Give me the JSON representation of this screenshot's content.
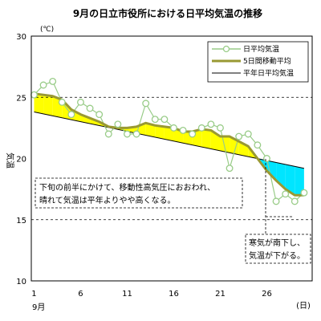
{
  "chart_data": {
    "type": "line",
    "title": "9月の日立市役所における日平均気温の推移",
    "y_unit": "(℃)",
    "ylabel": "気温",
    "x_month_label": "9月",
    "x_unit": "(日)",
    "ylim": [
      10,
      30
    ],
    "y_ticks": [
      10,
      15,
      20,
      25,
      30
    ],
    "xlim": [
      1,
      30
    ],
    "x_ticks": [
      1,
      6,
      11,
      16,
      21,
      26
    ],
    "grid_y_dashed": [
      15,
      25
    ],
    "legend_position": "top-right",
    "colors": {
      "daily": "#99cc88",
      "moving_avg": "#999933",
      "normal": "#000000",
      "warm_fill": "#ffff00",
      "cold_fill": "#00e5ff"
    },
    "series": [
      {
        "name": "日平均気温",
        "x": [
          1,
          2,
          3,
          4,
          5,
          6,
          7,
          8,
          9,
          10,
          11,
          12,
          13,
          14,
          15,
          16,
          17,
          18,
          19,
          20,
          21,
          22,
          23,
          24,
          25,
          26,
          27,
          28,
          29,
          30
        ],
        "values": [
          25.2,
          26.0,
          26.3,
          24.6,
          23.6,
          24.6,
          24.1,
          23.6,
          22.0,
          22.8,
          22.0,
          22.0,
          24.5,
          23.2,
          23.2,
          22.5,
          22.3,
          22.0,
          22.5,
          22.8,
          22.5,
          19.2,
          21.8,
          22.0,
          21.1,
          20.0,
          16.5,
          17.1,
          16.5,
          17.2
        ]
      },
      {
        "name": "5日間移動平均",
        "x": [
          1,
          2,
          3,
          4,
          5,
          6,
          7,
          8,
          9,
          10,
          11,
          12,
          13,
          14,
          15,
          16,
          17,
          18,
          19,
          20,
          21,
          22,
          23,
          24,
          25,
          26,
          27,
          28,
          29,
          30
        ],
        "values": [
          25.3,
          25.2,
          25.1,
          24.8,
          24.0,
          23.6,
          23.3,
          23.0,
          22.6,
          22.5,
          22.5,
          22.6,
          22.9,
          22.7,
          22.6,
          22.5,
          22.2,
          22.2,
          22.4,
          22.3,
          21.8,
          21.8,
          21.4,
          21.0,
          20.0,
          19.0,
          18.2,
          17.5,
          17.0,
          17.0
        ]
      },
      {
        "name": "平年日平均気温",
        "x": [
          1,
          30
        ],
        "values": [
          23.8,
          19.2
        ]
      }
    ],
    "annotations": [
      {
        "text": "下旬の前半にかけて、移動性高気圧におおわれ、晴れて気温は平年よりやや高くなる。",
        "lines": [
          "下旬の前半にかけて、移動性高気圧におおわれ、",
          "晴れて気温は平年よりやや高くなる。"
        ]
      },
      {
        "text": "寒気が南下し、気温が下がる。",
        "lines": [
          "寒気が南下し、",
          "気温が下がる。"
        ]
      }
    ]
  }
}
